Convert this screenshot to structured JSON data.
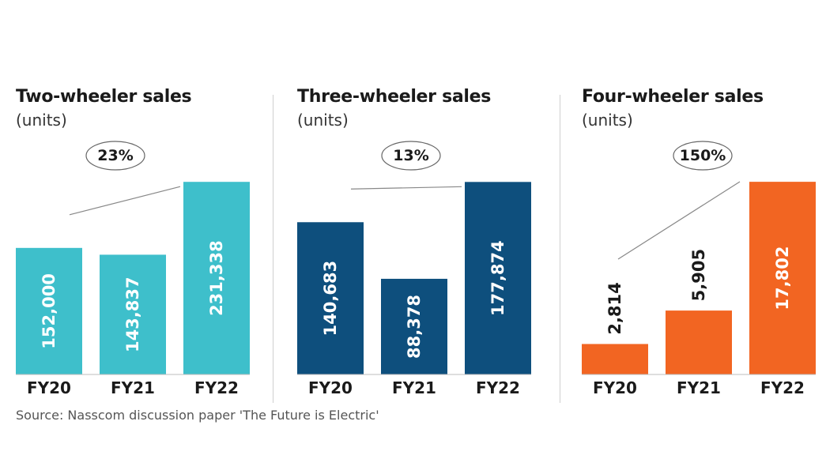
{
  "source": "Source: Nasscom discussion paper 'The Future is Electric'",
  "chart_data": [
    {
      "type": "bar",
      "title": "Two-wheeler sales",
      "subtitle": "(units)",
      "categories": [
        "FY20",
        "FY21",
        "FY22"
      ],
      "values": [
        152000,
        143837,
        231338
      ],
      "value_labels": [
        "152,000",
        "143,837",
        "231,338"
      ],
      "growth_annotation": "23%",
      "label_position": "inside",
      "color": "#3EBFCB",
      "label_color": "#ffffff",
      "ylim": [
        0,
        260000
      ]
    },
    {
      "type": "bar",
      "title": "Three-wheeler sales",
      "subtitle": "(units)",
      "categories": [
        "FY20",
        "FY21",
        "FY22"
      ],
      "values": [
        140683,
        88378,
        177874
      ],
      "value_labels": [
        "140,683",
        "88,378",
        "177,874"
      ],
      "growth_annotation": "13%",
      "label_position": "inside",
      "color": "#0E4F7D",
      "label_color": "#ffffff",
      "ylim": [
        0,
        200000
      ]
    },
    {
      "type": "bar",
      "title": "Four-wheeler sales",
      "subtitle": "(units)",
      "categories": [
        "FY20",
        "FY21",
        "FY22"
      ],
      "values": [
        2814,
        5905,
        17802
      ],
      "value_labels": [
        "2,814",
        "5,905",
        "17,802"
      ],
      "growth_annotation": "150%",
      "label_position": "mixed",
      "color": "#F26522",
      "label_color": "#ffffff",
      "outside_label_color": "#1a1a1a",
      "ylim": [
        0,
        20000
      ]
    }
  ]
}
